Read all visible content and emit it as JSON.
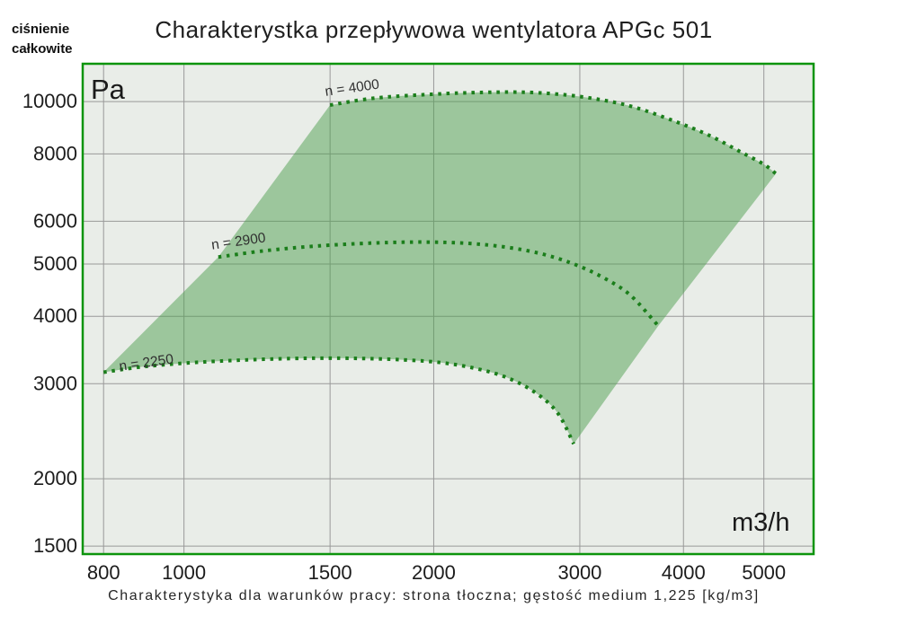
{
  "page": {
    "title": "Charakterystka przepływowa wentylatora APGc 501",
    "y_axis_title_line1": "ciśnienie",
    "y_axis_title_line2": "całkowite",
    "y_unit": "Pa",
    "x_unit": "m3/h",
    "caption": "Charakterystyka dla warunków pracy: strona tłoczna; gęstość medium 1,225 [kg/m3]"
  },
  "chart_data": {
    "type": "area",
    "title": "Charakterystka przepływowa wentylatora APGc 501",
    "xlabel": "m3/h",
    "ylabel": "Pa",
    "x_scale": "log",
    "y_scale": "log",
    "xlim": [
      755,
      5740
    ],
    "ylim": [
      1450,
      11750
    ],
    "x_ticks": [
      800,
      1000,
      1500,
      2000,
      3000,
      4000,
      5000
    ],
    "y_ticks": [
      10000,
      8000,
      6000,
      5000,
      4000,
      3000,
      2000,
      1500
    ],
    "grid": true,
    "legend_position": "inline-labels",
    "series": [
      {
        "name": "n = 4000",
        "slug": "n-4000",
        "rpm": 4000,
        "label_anchor": {
          "x": 1482,
          "y": 10240
        },
        "points": [
          [
            1500,
            9850
          ],
          [
            1700,
            10150
          ],
          [
            2000,
            10320
          ],
          [
            2300,
            10400
          ],
          [
            2600,
            10400
          ],
          [
            2900,
            10280
          ],
          [
            3200,
            10060
          ],
          [
            3500,
            9750
          ],
          [
            3900,
            9200
          ],
          [
            4300,
            8650
          ],
          [
            4700,
            8050
          ],
          [
            5000,
            7650
          ],
          [
            5170,
            7350
          ]
        ]
      },
      {
        "name": "n = 2900",
        "slug": "n-2900",
        "rpm": 2900,
        "label_anchor": {
          "x": 1081,
          "y": 5320
        },
        "points": [
          [
            1100,
            5150
          ],
          [
            1250,
            5290
          ],
          [
            1450,
            5400
          ],
          [
            1700,
            5470
          ],
          [
            1950,
            5490
          ],
          [
            2200,
            5460
          ],
          [
            2450,
            5370
          ],
          [
            2700,
            5220
          ],
          [
            2950,
            5000
          ],
          [
            3200,
            4720
          ],
          [
            3450,
            4380
          ],
          [
            3730,
            3840
          ]
        ]
      },
      {
        "name": "n = 2250",
        "slug": "n-2250",
        "rpm": 2250,
        "label_anchor": {
          "x": 837,
          "y": 3170
        },
        "points": [
          [
            800,
            3150
          ],
          [
            900,
            3230
          ],
          [
            1050,
            3290
          ],
          [
            1250,
            3330
          ],
          [
            1450,
            3345
          ],
          [
            1650,
            3340
          ],
          [
            1850,
            3320
          ],
          [
            2050,
            3280
          ],
          [
            2250,
            3200
          ],
          [
            2450,
            3080
          ],
          [
            2650,
            2890
          ],
          [
            2820,
            2650
          ],
          [
            2950,
            2320
          ]
        ]
      }
    ],
    "operating_region": {
      "left_edge": [
        [
          800,
          3150
        ],
        [
          1100,
          5150
        ],
        [
          1500,
          9850
        ]
      ],
      "right_edge": [
        [
          5170,
          7350
        ],
        [
          3730,
          3840
        ],
        [
          2950,
          2320
        ]
      ]
    },
    "colors": {
      "plot_bg": "#e9ede8",
      "grid": "#999999",
      "border": "#0c940c",
      "curve": "#1b7e1b",
      "region_fill": "rgba(79,160,79,0.5)",
      "text": "#1c1c1c"
    }
  }
}
